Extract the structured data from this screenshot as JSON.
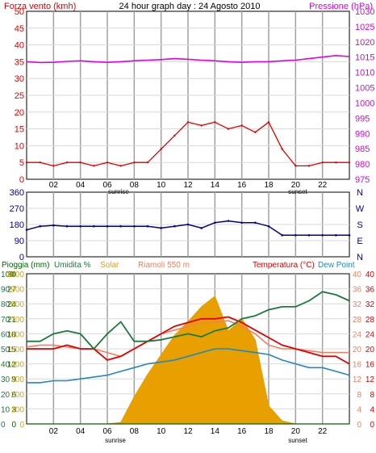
{
  "colors": {
    "wind_speed": "#e00000",
    "wind_avg": "#0000c8",
    "wind_gust_fill": "#008000",
    "pressure": "#e000e0",
    "direction": "#000090",
    "rain": "#006400",
    "humidity": "#1a7a3a",
    "solar": "#e8a000",
    "temperature": "#e00000",
    "dew_point": "#1e88c8",
    "riamoli": "#f08060",
    "grid": "#a0a0a0",
    "frame": "#000000"
  },
  "panel1": {
    "left_label": "Forza vento (kmh)",
    "title": "24 hour graph day : 24 Agosto 2010",
    "right_label": "Pressione (hPa)",
    "left_ticks": [
      "50",
      "45",
      "40",
      "35",
      "30",
      "25",
      "20",
      "15",
      "10",
      "5",
      "0"
    ],
    "right_ticks": [
      "1030",
      "1025",
      "1020",
      "1015",
      "1010",
      "1005",
      "1000",
      "995",
      "990",
      "985",
      "980",
      "975"
    ],
    "hour_ticks": [
      "02",
      "04",
      "06",
      "08",
      "10",
      "12",
      "14",
      "16",
      "18",
      "20",
      "22"
    ],
    "sunrise": "sunrise",
    "sunset": "sunset"
  },
  "panel2": {
    "left_ticks": [
      "360",
      "270",
      "180",
      "90",
      "0"
    ],
    "right_ticks": [
      "N",
      "W",
      "S",
      "E",
      "N"
    ]
  },
  "panel3": {
    "label_rain": "Pioggia (mm)",
    "label_humidity": "Umidita %",
    "label_solar": "Solar",
    "label_riamoli": "Riamoli 550 m",
    "label_temperature": "Temperatura (°C)",
    "label_dew": "Dew Point",
    "rain_ticks": [
      "30",
      "27",
      "24",
      "21",
      "18",
      "15",
      "12",
      "9",
      "6",
      "3",
      "0"
    ],
    "humidity_ticks": [
      "100",
      "90",
      "80",
      "70",
      "60",
      "50",
      "40",
      "30",
      "20",
      "10",
      "0"
    ],
    "solar_ticks": [
      "1000",
      "900",
      "800",
      "700",
      "600",
      "500",
      "400",
      "300",
      "200",
      "100",
      "0"
    ],
    "temp_ticks": [
      "40",
      "36",
      "32",
      "28",
      "24",
      "20",
      "16",
      "12",
      "8",
      "4",
      "0"
    ],
    "temp_ticks_right": [
      "40",
      "36",
      "32",
      "28",
      "24",
      "20",
      "16",
      "12",
      "8",
      "4",
      "0"
    ],
    "hour_ticks": [
      "02",
      "04",
      "06",
      "08",
      "10",
      "12",
      "14",
      "16",
      "18",
      "20",
      "22"
    ],
    "sunrise": "sunrise",
    "sunset": "sunset"
  },
  "chart_data": [
    {
      "type": "line",
      "title": "24 hour graph day : 24 Agosto 2010",
      "x": [
        0,
        1,
        2,
        3,
        4,
        5,
        6,
        7,
        8,
        9,
        10,
        11,
        12,
        13,
        14,
        15,
        16,
        17,
        18,
        19,
        20,
        21,
        22,
        23,
        24
      ],
      "series": [
        {
          "name": "Forza vento (kmh)",
          "axis": "left",
          "values": [
            5,
            5,
            4,
            5,
            5,
            4,
            5,
            4,
            5,
            5,
            9,
            13,
            17,
            16,
            17,
            15,
            16,
            14,
            17,
            9,
            4,
            4,
            5,
            5,
            5
          ]
        },
        {
          "name": "Pressione (hPa)",
          "axis": "right",
          "values": [
            1013.5,
            1013.2,
            1013.3,
            1013.6,
            1013.8,
            1013.5,
            1013.3,
            1013.5,
            1013.8,
            1014,
            1014.2,
            1014.5,
            1014.3,
            1014,
            1013.8,
            1013.5,
            1013.3,
            1013.5,
            1013.5,
            1013.8,
            1014,
            1014.5,
            1015,
            1015.5,
            1015.2
          ]
        }
      ],
      "ylim_left": [
        0,
        50
      ],
      "ylim_right": [
        975,
        1030
      ],
      "xlim": [
        0,
        24
      ]
    },
    {
      "type": "line",
      "x": [
        0,
        1,
        2,
        3,
        4,
        5,
        6,
        7,
        8,
        9,
        10,
        11,
        12,
        13,
        14,
        15,
        16,
        17,
        18,
        19,
        20,
        21,
        22,
        23,
        24
      ],
      "series": [
        {
          "name": "direction",
          "values": [
            150,
            170,
            175,
            170,
            170,
            170,
            170,
            170,
            170,
            170,
            160,
            170,
            180,
            160,
            190,
            200,
            190,
            190,
            170,
            120,
            120,
            120,
            120,
            120,
            120
          ]
        }
      ],
      "ylim": [
        0,
        360
      ]
    },
    {
      "type": "line",
      "x": [
        0,
        1,
        2,
        3,
        4,
        5,
        6,
        7,
        8,
        9,
        10,
        11,
        12,
        13,
        14,
        15,
        16,
        17,
        18,
        19,
        20,
        21,
        22,
        23,
        24
      ],
      "series": [
        {
          "name": "Umidita %",
          "axis": "humidity",
          "values": [
            55,
            55,
            60,
            62,
            60,
            50,
            60,
            68,
            55,
            55,
            56,
            58,
            60,
            58,
            62,
            64,
            70,
            72,
            76,
            78,
            78,
            82,
            88,
            86,
            82
          ]
        },
        {
          "name": "Temperatura (°C)",
          "axis": "temp",
          "values": [
            20,
            20,
            20,
            21,
            20,
            20,
            17,
            18,
            20,
            22,
            24,
            26,
            27,
            28,
            28,
            28.5,
            27,
            25,
            23,
            21,
            20,
            19,
            18,
            18,
            16
          ]
        },
        {
          "name": "Riamoli 550 m",
          "axis": "temp",
          "values": [
            20.5,
            21,
            21,
            20.5,
            20,
            20,
            19,
            18,
            20,
            22,
            24,
            25,
            26,
            27,
            27,
            27.5,
            26,
            24,
            21,
            20,
            20,
            19.5,
            19,
            19,
            19
          ]
        },
        {
          "name": "Dew Point",
          "axis": "temp",
          "values": [
            11,
            11,
            11.5,
            11.5,
            12,
            12.5,
            13,
            14,
            15,
            16,
            16.5,
            17,
            18,
            19,
            20,
            20,
            19.5,
            19,
            18.5,
            17,
            16,
            15,
            15,
            14,
            13
          ]
        },
        {
          "name": "Solar",
          "axis": "solar",
          "type": "area",
          "values": [
            0,
            0,
            0,
            0,
            0,
            0,
            0,
            10,
            180,
            330,
            460,
            590,
            680,
            780,
            850,
            620,
            700,
            560,
            120,
            20,
            0,
            0,
            0,
            0,
            0
          ]
        },
        {
          "name": "Pioggia (mm)",
          "axis": "rain",
          "values": [
            0,
            0,
            0,
            0,
            0,
            0,
            0,
            0,
            0,
            0,
            0,
            0,
            0,
            0,
            0,
            0,
            0,
            0,
            0,
            0,
            0,
            0,
            0,
            0,
            0
          ]
        }
      ],
      "ylim_temp": [
        0,
        40
      ],
      "ylim_humidity": [
        0,
        100
      ],
      "ylim_solar": [
        0,
        1000
      ],
      "ylim_rain": [
        0,
        30
      ]
    }
  ]
}
